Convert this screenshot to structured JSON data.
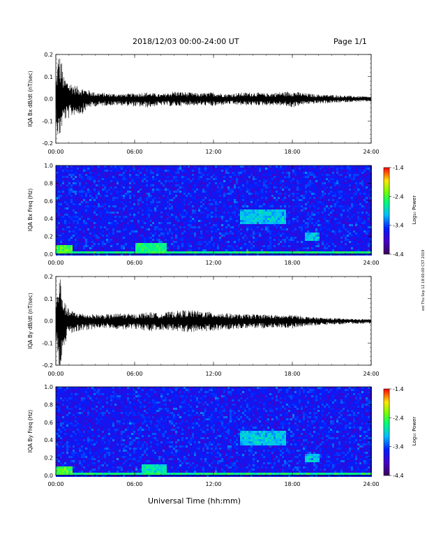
{
  "header": {
    "date_range": "2018/12/03  00:00-24:00 UT",
    "page": "Page 1/1"
  },
  "footer_stamp": "est Thu Sep 12 18:00:00 CST 2019",
  "chart_data": [
    {
      "type": "line",
      "ylabel": "IQA Bx dB/dt (nT/sec)",
      "xlabel": "",
      "x_unit": "hours UT",
      "xlim": [
        0,
        24
      ],
      "ylim": [
        -0.2,
        0.2
      ],
      "x_ticks": [
        "00:00",
        "06:00",
        "12:00",
        "18:00",
        "24:00"
      ],
      "y_ticks": [
        "0.2",
        "0.1",
        "0.0",
        "-0.1",
        "-0.2"
      ],
      "envelope": {
        "x": [
          0,
          0.2,
          0.4,
          0.6,
          1.0,
          1.5,
          2.0,
          2.5,
          3.0,
          4.0,
          5.0,
          6.0,
          7.0,
          8.0,
          9.0,
          10.0,
          11.0,
          12.0,
          13.0,
          14.0,
          15.0,
          16.0,
          17.0,
          18.0,
          19.0,
          20.0,
          21.0,
          22.0,
          23.0,
          24.0
        ],
        "max": [
          0.08,
          0.21,
          0.19,
          0.1,
          0.08,
          0.06,
          0.05,
          0.04,
          0.03,
          0.025,
          0.022,
          0.025,
          0.03,
          0.02,
          0.035,
          0.03,
          0.025,
          0.03,
          0.022,
          0.028,
          0.03,
          0.025,
          0.03,
          0.035,
          0.025,
          0.02,
          0.018,
          0.015,
          0.012,
          0.01
        ],
        "min": [
          -0.08,
          -0.21,
          -0.15,
          -0.1,
          -0.09,
          -0.07,
          -0.07,
          -0.04,
          -0.035,
          -0.03,
          -0.03,
          -0.035,
          -0.04,
          -0.03,
          -0.035,
          -0.03,
          -0.03,
          -0.035,
          -0.025,
          -0.03,
          -0.03,
          -0.03,
          -0.03,
          -0.04,
          -0.025,
          -0.022,
          -0.02,
          -0.016,
          -0.014,
          -0.012
        ]
      }
    },
    {
      "type": "heatmap",
      "ylabel": "IQA Bx Freq (Hz)",
      "colorbar_label": "Log₁₀ Power",
      "xlim": [
        0,
        24
      ],
      "ylim": [
        0,
        1.0
      ],
      "x_ticks": [
        "00:00",
        "06:00",
        "12:00",
        "18:00",
        "24:00"
      ],
      "y_ticks": [
        "1.0",
        "0.8",
        "0.6",
        "0.4",
        "0.2",
        "0.0"
      ],
      "colorbar_ticks": [
        "-1.4",
        "-2.4",
        "-3.4",
        "-4.4"
      ],
      "colorbar_range": [
        -4.4,
        -1.4
      ],
      "background_level": -3.6,
      "features": [
        {
          "x": [
            0,
            1.2
          ],
          "y": [
            0,
            0.1
          ],
          "level": -2.4
        },
        {
          "x": [
            6.0,
            8.5
          ],
          "y": [
            0,
            0.12
          ],
          "level": -2.6
        },
        {
          "x": [
            14.0,
            17.5
          ],
          "y": [
            0.35,
            0.5
          ],
          "level": -3.0
        },
        {
          "x": [
            19.0,
            20.0
          ],
          "y": [
            0.15,
            0.25
          ],
          "level": -3.0
        },
        {
          "x": [
            0,
            24
          ],
          "y": [
            0,
            0.04
          ],
          "level": -2.6
        }
      ]
    },
    {
      "type": "line",
      "ylabel": "IQA By dB/dt (nT/sec)",
      "xlabel": "",
      "x_unit": "hours UT",
      "xlim": [
        0,
        24
      ],
      "ylim": [
        -0.2,
        0.2
      ],
      "x_ticks": [
        "00:00",
        "06:00",
        "12:00",
        "18:00",
        "24:00"
      ],
      "y_ticks": [
        "0.2",
        "0.1",
        "0.0",
        "-0.1",
        "-0.2"
      ],
      "envelope": {
        "x": [
          0,
          0.2,
          0.4,
          0.6,
          1.0,
          1.5,
          2.0,
          2.5,
          3.0,
          4.0,
          5.0,
          6.0,
          7.0,
          8.0,
          9.0,
          10.0,
          11.0,
          12.0,
          13.0,
          14.0,
          15.0,
          16.0,
          17.0,
          18.0,
          19.0,
          20.0,
          21.0,
          22.0,
          23.0,
          24.0
        ],
        "max": [
          0.07,
          0.2,
          0.2,
          0.09,
          0.05,
          0.04,
          0.035,
          0.03,
          0.03,
          0.03,
          0.035,
          0.03,
          0.04,
          0.035,
          0.045,
          0.05,
          0.045,
          0.04,
          0.035,
          0.03,
          0.03,
          0.03,
          0.025,
          0.028,
          0.02,
          0.015,
          0.012,
          0.01,
          0.008,
          0.008
        ],
        "min": [
          -0.07,
          -0.21,
          -0.2,
          -0.12,
          -0.06,
          -0.05,
          -0.045,
          -0.04,
          -0.035,
          -0.035,
          -0.04,
          -0.035,
          -0.05,
          -0.04,
          -0.045,
          -0.05,
          -0.05,
          -0.045,
          -0.04,
          -0.035,
          -0.035,
          -0.035,
          -0.03,
          -0.035,
          -0.025,
          -0.02,
          -0.018,
          -0.015,
          -0.013,
          -0.012
        ]
      }
    },
    {
      "type": "heatmap",
      "ylabel": "IQA By Freq (Hz)",
      "colorbar_label": "Log₁₀ Power",
      "xlim": [
        0,
        24
      ],
      "ylim": [
        0,
        1.0
      ],
      "x_ticks": [
        "00:00",
        "06:00",
        "12:00",
        "18:00",
        "24:00"
      ],
      "y_ticks": [
        "1.0",
        "0.8",
        "0.6",
        "0.4",
        "0.2",
        "0.0"
      ],
      "colorbar_ticks": [
        "-1.4",
        "-2.4",
        "-3.4",
        "-4.4"
      ],
      "colorbar_range": [
        -4.4,
        -1.4
      ],
      "background_level": -3.6,
      "features": [
        {
          "x": [
            0,
            1.2
          ],
          "y": [
            0,
            0.1
          ],
          "level": -2.4
        },
        {
          "x": [
            6.5,
            8.5
          ],
          "y": [
            0,
            0.13
          ],
          "level": -2.8
        },
        {
          "x": [
            14.0,
            17.5
          ],
          "y": [
            0.35,
            0.5
          ],
          "level": -3.0
        },
        {
          "x": [
            19.0,
            20.0
          ],
          "y": [
            0.15,
            0.25
          ],
          "level": -3.0
        },
        {
          "x": [
            0,
            24
          ],
          "y": [
            0,
            0.04
          ],
          "level": -2.6
        }
      ]
    }
  ],
  "xaxis_title": "Universal Time (hh:mm)"
}
